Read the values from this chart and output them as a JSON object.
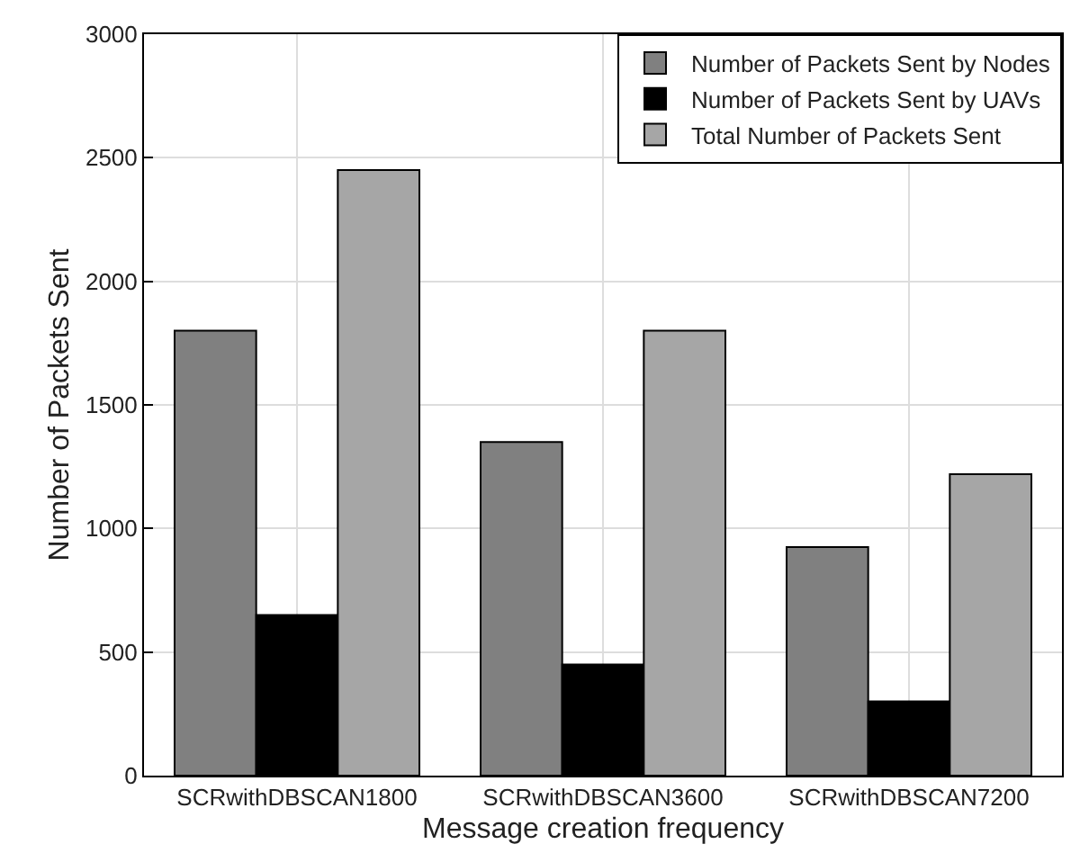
{
  "chart_data": {
    "type": "bar",
    "xlabel": "Message creation frequency",
    "ylabel": "Number of Packets Sent",
    "categories": [
      "SCRwithDBSCAN1800",
      "SCRwithDBSCAN3600",
      "SCRwithDBSCAN7200"
    ],
    "series": [
      {
        "name": "Number of Packets Sent by Nodes",
        "color": "#808080",
        "values": [
          1800,
          1350,
          925
        ]
      },
      {
        "name": "Number of Packets Sent by UAVs",
        "color": "#000000",
        "values": [
          650,
          450,
          300
        ]
      },
      {
        "name": "Total Number of Packets Sent",
        "color": "#a6a6a6",
        "values": [
          2450,
          1800,
          1220
        ]
      }
    ],
    "ylim": [
      0,
      3000
    ],
    "yticks": [
      0,
      500,
      1000,
      1500,
      2000,
      2500,
      3000
    ],
    "grid": true,
    "legend": "top right"
  }
}
